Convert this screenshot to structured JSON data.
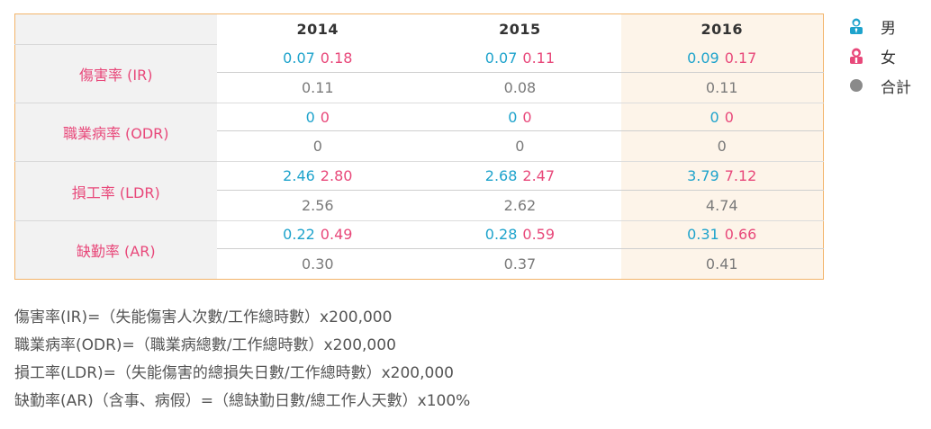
{
  "years": [
    "2014",
    "2015",
    "2016"
  ],
  "rows": [
    {
      "label": "傷害率 (IR)",
      "values": [
        {
          "male": "0.07",
          "female": "0.18",
          "total": "0.11"
        },
        {
          "male": "0.07",
          "female": "0.11",
          "total": "0.08"
        },
        {
          "male": "0.09",
          "female": "0.17",
          "total": "0.11"
        }
      ]
    },
    {
      "label": "職業病率 (ODR)",
      "values": [
        {
          "male": "0",
          "female": "0",
          "total": "0"
        },
        {
          "male": "0",
          "female": "0",
          "total": "0"
        },
        {
          "male": "0",
          "female": "0",
          "total": "0"
        }
      ]
    },
    {
      "label": "損工率 (LDR)",
      "values": [
        {
          "male": "2.46",
          "female": "2.80",
          "total": "2.56"
        },
        {
          "male": "2.68",
          "female": "2.47",
          "total": "2.62"
        },
        {
          "male": "3.79",
          "female": "7.12",
          "total": "4.74"
        }
      ]
    },
    {
      "label": "缺勤率 (AR)",
      "values": [
        {
          "male": "0.22",
          "female": "0.49",
          "total": "0.30"
        },
        {
          "male": "0.28",
          "female": "0.59",
          "total": "0.37"
        },
        {
          "male": "0.31",
          "female": "0.66",
          "total": "0.41"
        }
      ]
    }
  ],
  "legend": [
    {
      "label": "男",
      "icon": "male-person-icon",
      "color": "#1ea3cc"
    },
    {
      "label": "女",
      "icon": "female-person-icon",
      "color": "#e8487a"
    },
    {
      "label": "合計",
      "icon": "total-dot-icon",
      "color": "#8a8a8a"
    }
  ],
  "formulas": [
    "傷害率(IR)=（失能傷害人次數/工作總時數）x200,000",
    "職業病率(ODR)=（職業病總數/工作總時數）x200,000",
    "損工率(LDR)=（失能傷害的總損失日數/工作總時數）x200,000",
    "缺勤率(AR)（含事、病假）=（總缺勤日數/總工作人天數）x100%"
  ],
  "colors": {
    "male": "#1ea3cc",
    "female": "#e8487a",
    "total": "#7a7a7a",
    "border": "#f3b46a",
    "highlight": "#fdf4e9"
  }
}
